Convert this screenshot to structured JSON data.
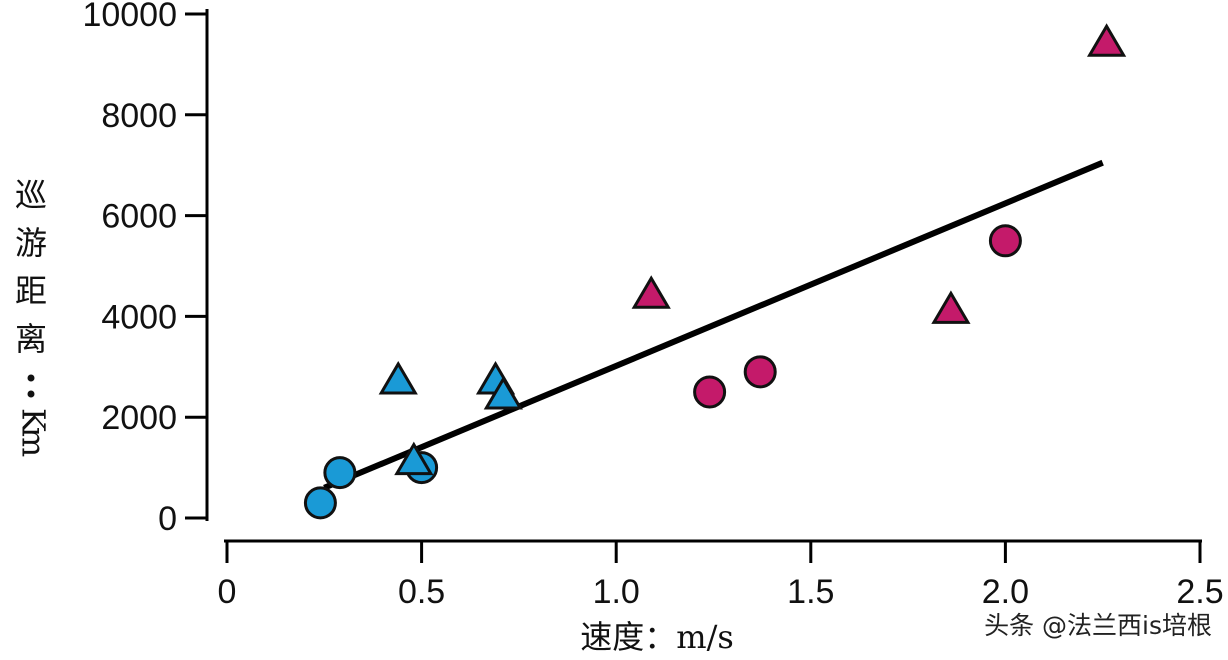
{
  "chart_data": {
    "type": "scatter",
    "xlabel": "速度：m/s",
    "ylabel": "巡游距离：Km",
    "xlim": [
      0,
      2.5
    ],
    "ylim": [
      0,
      10000
    ],
    "x_ticks": [
      "0",
      "0.5",
      "1.0",
      "1.5",
      "2.0",
      "2.5"
    ],
    "y_ticks": [
      "0",
      "2000",
      "4000",
      "6000",
      "8000",
      "10000"
    ],
    "grid": false,
    "legend": "none",
    "series": [
      {
        "marker": "circle",
        "color": "#1a9ad6",
        "points": [
          [
            0.24,
            300
          ],
          [
            0.29,
            900
          ],
          [
            0.5,
            1000
          ]
        ]
      },
      {
        "marker": "triangle",
        "color": "#1a9ad6",
        "points": [
          [
            0.44,
            2700
          ],
          [
            0.48,
            1100
          ],
          [
            0.69,
            2700
          ],
          [
            0.71,
            2400
          ]
        ]
      },
      {
        "marker": "circle",
        "color": "#c41a6a",
        "points": [
          [
            1.24,
            2500
          ],
          [
            1.37,
            2900
          ],
          [
            2.0,
            5500
          ]
        ]
      },
      {
        "marker": "triangle",
        "color": "#c41a6a",
        "points": [
          [
            1.09,
            4400
          ],
          [
            1.86,
            4100
          ],
          [
            2.26,
            9400
          ]
        ]
      }
    ],
    "trend_line": {
      "from": [
        0.25,
        600
      ],
      "to": [
        2.25,
        7050
      ],
      "color": "#000000"
    }
  },
  "watermark": "头条 @法兰西is培根"
}
